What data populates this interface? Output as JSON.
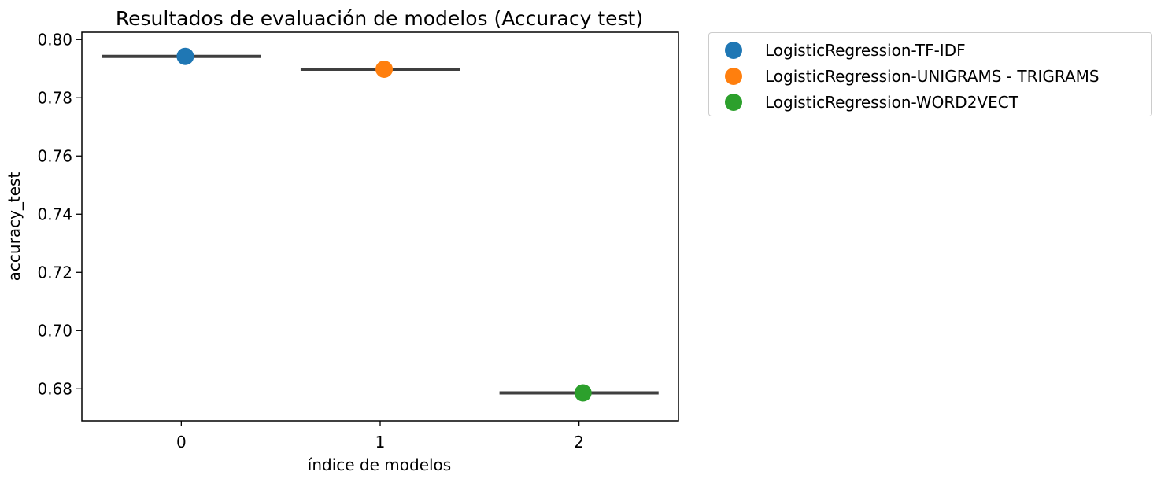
{
  "chart_data": {
    "type": "scatter",
    "title": "Resultados de evaluación de modelos (Accuracy test)",
    "xlabel": "índice de modelos",
    "ylabel": "accuracy_test",
    "categories": [
      "0",
      "1",
      "2"
    ],
    "x": [
      0,
      1,
      2
    ],
    "ylim": [
      0.669,
      0.8025
    ],
    "yticks": [
      "0.68",
      "0.70",
      "0.72",
      "0.74",
      "0.76",
      "0.78",
      "0.80"
    ],
    "ytick_values": [
      0.68,
      0.7,
      0.72,
      0.74,
      0.76,
      0.78,
      0.8
    ],
    "grid": false,
    "legend_position": "outside-right",
    "series": [
      {
        "name": "LogisticRegression-TF-IDF",
        "x": 0,
        "value": 0.7942,
        "color": "#1f77b4"
      },
      {
        "name": "LogisticRegression-UNIGRAMS - TRIGRAMS",
        "x": 1,
        "value": 0.7898,
        "color": "#ff7f0e"
      },
      {
        "name": "LogisticRegression-WORD2VECT",
        "x": 2,
        "value": 0.6786,
        "color": "#2ca02c"
      }
    ],
    "mean_line_color": "#3f3f3f"
  }
}
